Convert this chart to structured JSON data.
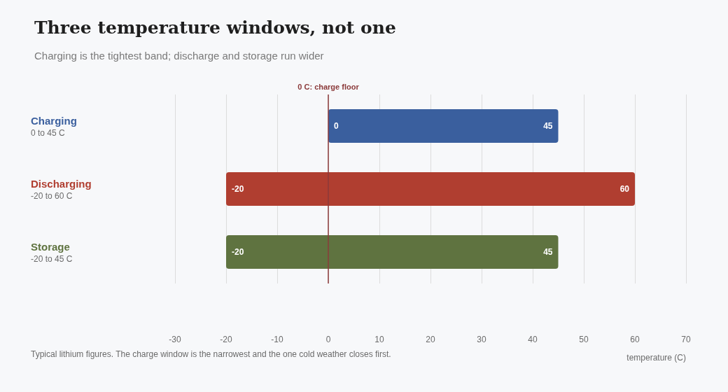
{
  "chart_data": {
    "type": "bar",
    "orientation": "horizontal",
    "title": "Three temperature windows, not one",
    "subtitle": "Charging is the tightest band; discharge and storage run wider",
    "categories": [
      "Charging\n0 to 45 C",
      "Discharging\n-20 to 60 C",
      "Storage\n-20 to 45 C"
    ],
    "base": [
      0,
      -20,
      -20
    ],
    "values": [
      45,
      80,
      65
    ],
    "colors": [
      "#3a5f9e",
      "#b03e30",
      "#5f7340"
    ],
    "xlim": [
      -30,
      70
    ],
    "xticks": [
      -30,
      -20,
      -10,
      0,
      10,
      20,
      30,
      40,
      50,
      60,
      70
    ],
    "xlabel": "temperature (C)",
    "grid": "x",
    "ref_lines": [
      {
        "axis": "x",
        "value": 0,
        "label": "0 C: charge floor",
        "color": "#8b3a3a"
      }
    ],
    "annotations": [
      {
        "text": "0",
        "x": 0,
        "y": "Charging\n0 to 45 C"
      },
      {
        "text": "45",
        "x": 45,
        "y": "Charging\n0 to 45 C"
      },
      {
        "text": "-20",
        "x": -20,
        "y": "Discharging\n-20 to 60 C"
      },
      {
        "text": "60",
        "x": 60,
        "y": "Discharging\n-20 to 60 C"
      },
      {
        "text": "-20",
        "x": -20,
        "y": "Storage\n-20 to 45 C"
      },
      {
        "text": "45",
        "x": 45,
        "y": "Storage\n-20 to 45 C"
      },
      "Typical lithium figures. The charge window is the narrowest and the one cold weather closes first."
    ]
  }
}
